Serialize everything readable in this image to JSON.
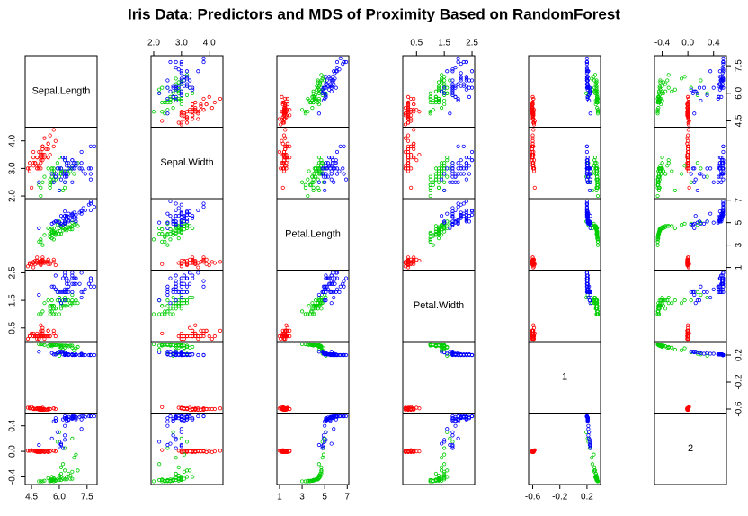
{
  "chart_data": {
    "type": "scatter_matrix",
    "title": "Iris Data: Predictors and MDS of Proximity Based on RandomForest",
    "variables": [
      {
        "name": "Sepal.Length",
        "lim": [
          4.156,
          8.044
        ],
        "ticks": [
          4.5,
          {
            "value": 6,
            "label": "6.0"
          },
          7.5
        ]
      },
      {
        "name": "Sepal.Width",
        "lim": [
          1.904,
          4.496
        ],
        "ticks": [
          {
            "value": 2,
            "label": "2.0"
          },
          {
            "value": 3,
            "label": "3.0"
          },
          {
            "value": 4,
            "label": "4.0"
          }
        ]
      },
      {
        "name": "Petal.Length",
        "lim": [
          0.764,
          7.136
        ],
        "ticks": [
          1,
          3,
          5,
          7
        ]
      },
      {
        "name": "Petal.Width",
        "lim": [
          0.004,
          2.596
        ],
        "ticks": [
          0.5,
          1.5,
          2.5
        ]
      },
      {
        "name": "1",
        "lim": [
          -0.66,
          0.4
        ],
        "ticks": [
          -0.6,
          -0.2,
          0.2
        ]
      },
      {
        "name": "2",
        "lim": [
          -0.52,
          0.6
        ],
        "ticks": [
          -0.4,
          {
            "value": 0,
            "label": "0.0"
          },
          0.4
        ]
      }
    ],
    "series": [
      {
        "color": "#ff0000",
        "values": [
          [
            5.1,
            4.9,
            4.7,
            4.6,
            5.0,
            5.4,
            4.6,
            5.0,
            4.4,
            4.9,
            5.4,
            4.8,
            4.8,
            4.3,
            5.8,
            5.7,
            5.4,
            5.1,
            5.7,
            5.1,
            5.4,
            5.1,
            4.6,
            5.1,
            4.8,
            5.0,
            5.0,
            5.2,
            5.2,
            4.7,
            4.8,
            5.4,
            5.2,
            5.5,
            4.9,
            5.0,
            5.5,
            4.9,
            4.4,
            5.1,
            5.0,
            4.5,
            4.4,
            5.0,
            5.1,
            4.8,
            5.1,
            4.6,
            5.3,
            5.0
          ],
          [
            3.5,
            3.0,
            3.2,
            3.1,
            3.6,
            3.9,
            3.4,
            3.4,
            2.9,
            3.1,
            3.7,
            3.4,
            3.0,
            3.0,
            4.0,
            4.4,
            3.9,
            3.5,
            3.8,
            3.8,
            3.4,
            3.7,
            3.6,
            3.3,
            3.4,
            3.0,
            3.4,
            3.5,
            3.4,
            3.2,
            3.1,
            3.4,
            4.1,
            4.2,
            3.1,
            3.2,
            3.5,
            3.6,
            3.0,
            3.4,
            3.5,
            2.3,
            3.2,
            3.5,
            3.8,
            3.0,
            3.8,
            3.2,
            3.7,
            3.3
          ],
          [
            1.4,
            1.4,
            1.3,
            1.5,
            1.4,
            1.7,
            1.4,
            1.5,
            1.4,
            1.5,
            1.5,
            1.6,
            1.4,
            1.1,
            1.2,
            1.5,
            1.3,
            1.4,
            1.7,
            1.5,
            1.7,
            1.5,
            1.0,
            1.7,
            1.9,
            1.6,
            1.6,
            1.5,
            1.4,
            1.6,
            1.6,
            1.5,
            1.5,
            1.4,
            1.5,
            1.2,
            1.3,
            1.4,
            1.3,
            1.5,
            1.3,
            1.3,
            1.3,
            1.6,
            1.9,
            1.4,
            1.6,
            1.4,
            1.5,
            1.4
          ],
          [
            0.2,
            0.2,
            0.2,
            0.2,
            0.2,
            0.4,
            0.3,
            0.2,
            0.2,
            0.1,
            0.2,
            0.2,
            0.1,
            0.1,
            0.2,
            0.4,
            0.4,
            0.3,
            0.3,
            0.3,
            0.2,
            0.4,
            0.2,
            0.5,
            0.2,
            0.2,
            0.4,
            0.2,
            0.2,
            0.2,
            0.2,
            0.4,
            0.1,
            0.2,
            0.2,
            0.2,
            0.2,
            0.1,
            0.2,
            0.2,
            0.3,
            0.3,
            0.2,
            0.6,
            0.4,
            0.3,
            0.2,
            0.2,
            0.2,
            0.2
          ],
          [
            -0.6,
            -0.59,
            -0.6,
            -0.59,
            -0.61,
            -0.6,
            -0.6,
            -0.61,
            -0.58,
            -0.59,
            -0.61,
            -0.6,
            -0.59,
            -0.58,
            -0.6,
            -0.59,
            -0.6,
            -0.61,
            -0.59,
            -0.61,
            -0.6,
            -0.61,
            -0.59,
            -0.58,
            -0.6,
            -0.59,
            -0.6,
            -0.61,
            -0.61,
            -0.6,
            -0.59,
            -0.6,
            -0.6,
            -0.6,
            -0.6,
            -0.6,
            -0.6,
            -0.61,
            -0.58,
            -0.61,
            -0.61,
            -0.57,
            -0.59,
            -0.59,
            -0.6,
            -0.59,
            -0.61,
            -0.6,
            -0.61,
            -0.61
          ],
          [
            0.0,
            -0.01,
            0.0,
            0.01,
            0.0,
            -0.01,
            0.01,
            0.0,
            0.01,
            -0.01,
            0.0,
            0.0,
            -0.01,
            0.01,
            0.0,
            0.01,
            -0.01,
            0.0,
            0.01,
            0.0,
            -0.01,
            0.0,
            0.01,
            0.0,
            0.01,
            -0.01,
            0.0,
            0.0,
            -0.01,
            0.01,
            0.0,
            0.0,
            -0.01,
            0.0,
            0.01,
            -0.01,
            0.0,
            0.0,
            0.01,
            0.0,
            -0.01,
            0.02,
            0.01,
            0.0,
            0.0,
            -0.01,
            0.0,
            0.01,
            0.0,
            0.0
          ]
        ]
      },
      {
        "color": "#00cd00",
        "values": [
          [
            7.0,
            6.4,
            6.9,
            5.5,
            6.5,
            5.7,
            6.3,
            4.9,
            6.6,
            5.2,
            5.0,
            5.9,
            6.0,
            6.1,
            5.6,
            6.7,
            5.6,
            5.8,
            6.2,
            5.6,
            5.9,
            6.1,
            6.3,
            6.1,
            6.4,
            6.6,
            6.8,
            6.7,
            6.0,
            5.7,
            5.5,
            5.5,
            5.8,
            6.0,
            5.4,
            6.0,
            6.7,
            6.3,
            5.6,
            5.5,
            5.5,
            6.1,
            5.8,
            5.0,
            5.6,
            5.7,
            5.7,
            6.2,
            5.1,
            5.7
          ],
          [
            3.2,
            3.2,
            3.1,
            2.3,
            2.8,
            2.8,
            3.3,
            2.4,
            2.9,
            2.7,
            2.0,
            3.0,
            2.2,
            2.9,
            2.9,
            3.1,
            3.0,
            2.7,
            2.2,
            2.5,
            3.2,
            2.8,
            2.5,
            2.8,
            2.9,
            3.0,
            2.8,
            3.0,
            2.9,
            2.6,
            2.4,
            2.4,
            2.7,
            2.7,
            3.0,
            3.4,
            3.1,
            2.3,
            3.0,
            2.5,
            2.6,
            3.0,
            2.6,
            2.3,
            2.7,
            3.0,
            2.9,
            2.9,
            2.5,
            2.8
          ],
          [
            4.7,
            4.5,
            4.9,
            4.0,
            4.6,
            4.5,
            4.7,
            3.3,
            4.6,
            3.9,
            3.5,
            4.2,
            4.0,
            4.7,
            3.6,
            4.4,
            4.5,
            4.1,
            4.5,
            3.9,
            4.8,
            4.0,
            4.9,
            4.7,
            4.3,
            4.4,
            4.8,
            5.0,
            4.5,
            3.5,
            3.8,
            3.7,
            3.9,
            5.1,
            4.5,
            4.5,
            4.7,
            4.4,
            4.1,
            4.0,
            4.4,
            4.6,
            4.0,
            3.3,
            4.2,
            4.2,
            4.2,
            4.3,
            3.0,
            4.1
          ],
          [
            1.4,
            1.5,
            1.5,
            1.3,
            1.5,
            1.3,
            1.6,
            1.0,
            1.3,
            1.4,
            1.0,
            1.5,
            1.0,
            1.4,
            1.3,
            1.4,
            1.5,
            1.0,
            1.5,
            1.1,
            1.8,
            1.3,
            1.5,
            1.2,
            1.3,
            1.4,
            1.4,
            1.7,
            1.5,
            1.0,
            1.1,
            1.0,
            1.2,
            1.6,
            1.5,
            1.6,
            1.5,
            1.3,
            1.3,
            1.3,
            1.2,
            1.4,
            1.2,
            1.0,
            1.3,
            1.2,
            1.3,
            1.3,
            1.1,
            1.3
          ],
          [
            0.32,
            0.34,
            0.3,
            0.35,
            0.33,
            0.35,
            0.31,
            0.36,
            0.34,
            0.35,
            0.36,
            0.35,
            0.34,
            0.31,
            0.35,
            0.34,
            0.33,
            0.35,
            0.28,
            0.35,
            0.22,
            0.35,
            0.24,
            0.33,
            0.34,
            0.34,
            0.27,
            0.21,
            0.34,
            0.36,
            0.35,
            0.36,
            0.35,
            0.19,
            0.33,
            0.32,
            0.31,
            0.34,
            0.35,
            0.35,
            0.34,
            0.33,
            0.35,
            0.36,
            0.35,
            0.35,
            0.35,
            0.34,
            0.36,
            0.35
          ],
          [
            -0.3,
            -0.4,
            -0.05,
            -0.45,
            -0.35,
            -0.42,
            -0.3,
            -0.47,
            -0.38,
            -0.46,
            -0.47,
            -0.44,
            -0.45,
            -0.25,
            -0.46,
            -0.43,
            -0.4,
            -0.45,
            -0.2,
            -0.46,
            0.15,
            -0.45,
            0.05,
            -0.35,
            -0.44,
            -0.43,
            -0.1,
            0.2,
            -0.38,
            -0.47,
            -0.46,
            -0.47,
            -0.46,
            0.3,
            -0.42,
            -0.4,
            -0.32,
            -0.44,
            -0.45,
            -0.45,
            -0.44,
            -0.4,
            -0.46,
            -0.47,
            -0.44,
            -0.45,
            -0.44,
            -0.43,
            -0.47,
            -0.45
          ]
        ]
      },
      {
        "color": "#0000ff",
        "values": [
          [
            6.3,
            5.8,
            7.1,
            6.3,
            6.5,
            7.6,
            4.9,
            7.3,
            6.7,
            7.2,
            6.5,
            6.4,
            6.8,
            5.7,
            5.8,
            6.4,
            6.5,
            7.7,
            7.7,
            6.0,
            6.9,
            5.6,
            7.7,
            6.3,
            6.7,
            7.2,
            6.2,
            6.1,
            6.4,
            7.2,
            7.4,
            7.9,
            6.4,
            6.3,
            6.1,
            7.7,
            6.3,
            6.4,
            6.0,
            6.9,
            6.7,
            6.9,
            5.8,
            6.8,
            6.7,
            6.7,
            6.3,
            6.5,
            6.2,
            5.9
          ],
          [
            3.3,
            2.7,
            3.0,
            2.9,
            3.0,
            3.0,
            2.5,
            2.9,
            2.5,
            3.6,
            3.2,
            2.7,
            3.0,
            2.5,
            2.8,
            3.2,
            3.0,
            3.8,
            2.6,
            2.2,
            3.2,
            2.8,
            2.8,
            2.7,
            3.3,
            3.2,
            2.8,
            3.0,
            2.8,
            3.0,
            2.8,
            3.8,
            2.8,
            2.8,
            2.6,
            3.0,
            3.4,
            3.1,
            3.0,
            3.1,
            3.1,
            3.1,
            2.7,
            3.2,
            3.3,
            3.0,
            2.5,
            3.0,
            3.4,
            3.0
          ],
          [
            6.0,
            5.1,
            5.9,
            5.6,
            5.8,
            6.6,
            4.5,
            6.3,
            5.8,
            6.1,
            5.1,
            5.3,
            5.5,
            5.0,
            5.1,
            5.3,
            5.5,
            6.7,
            6.9,
            5.0,
            5.7,
            4.9,
            6.7,
            4.9,
            5.7,
            6.0,
            4.8,
            4.9,
            5.6,
            5.8,
            6.1,
            6.4,
            5.6,
            5.1,
            5.6,
            6.1,
            5.6,
            5.5,
            4.8,
            5.4,
            5.6,
            5.1,
            5.1,
            5.9,
            5.7,
            5.2,
            5.0,
            5.2,
            5.4,
            5.1
          ],
          [
            2.5,
            1.9,
            2.1,
            1.8,
            2.2,
            2.1,
            1.7,
            1.8,
            1.8,
            2.5,
            2.0,
            1.9,
            2.1,
            2.0,
            2.4,
            2.3,
            1.8,
            2.2,
            2.3,
            1.5,
            2.3,
            2.0,
            2.0,
            1.8,
            2.1,
            1.8,
            1.8,
            1.8,
            2.1,
            1.6,
            1.9,
            2.0,
            2.2,
            1.5,
            1.4,
            2.3,
            2.4,
            1.8,
            1.8,
            2.1,
            2.4,
            2.3,
            1.9,
            2.3,
            2.5,
            2.3,
            1.9,
            2.0,
            2.3,
            1.8
          ],
          [
            0.2,
            0.21,
            0.2,
            0.21,
            0.2,
            0.2,
            0.25,
            0.2,
            0.21,
            0.2,
            0.21,
            0.21,
            0.2,
            0.21,
            0.21,
            0.21,
            0.21,
            0.2,
            0.2,
            0.24,
            0.2,
            0.23,
            0.2,
            0.22,
            0.21,
            0.21,
            0.25,
            0.24,
            0.21,
            0.22,
            0.2,
            0.2,
            0.21,
            0.24,
            0.25,
            0.2,
            0.21,
            0.21,
            0.25,
            0.21,
            0.2,
            0.21,
            0.21,
            0.2,
            0.2,
            0.21,
            0.22,
            0.21,
            0.21,
            0.23
          ],
          [
            0.55,
            0.48,
            0.54,
            0.52,
            0.54,
            0.55,
            0.1,
            0.55,
            0.52,
            0.55,
            0.5,
            0.51,
            0.54,
            0.47,
            0.52,
            0.53,
            0.5,
            0.55,
            0.55,
            0.15,
            0.54,
            0.2,
            0.55,
            0.25,
            0.53,
            0.5,
            0.05,
            0.1,
            0.53,
            0.35,
            0.54,
            0.55,
            0.53,
            0.18,
            0.12,
            0.55,
            0.52,
            0.48,
            0.08,
            0.52,
            0.54,
            0.5,
            0.48,
            0.55,
            0.55,
            0.51,
            0.4,
            0.49,
            0.5,
            0.3
          ]
        ]
      }
    ]
  }
}
